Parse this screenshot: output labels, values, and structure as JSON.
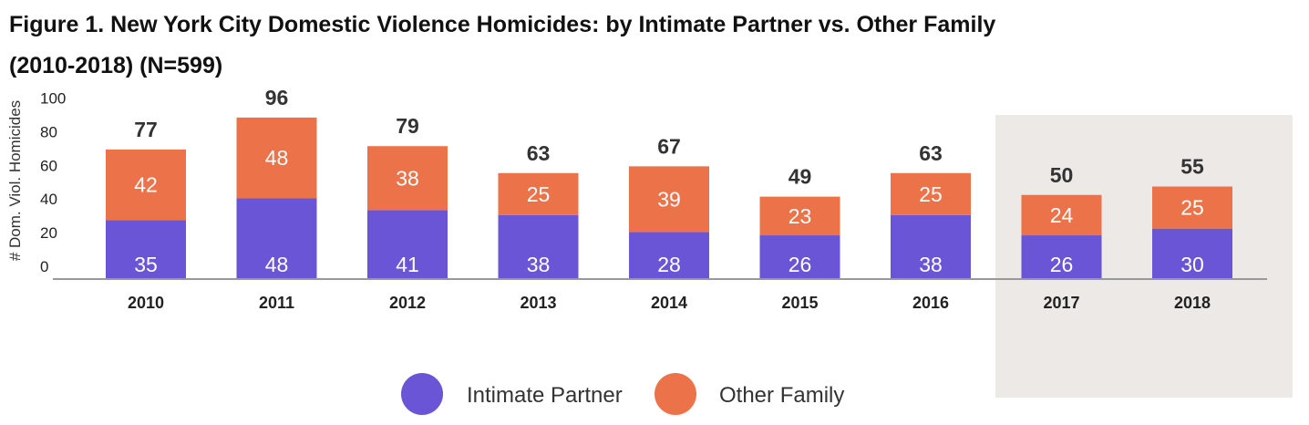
{
  "chart_data": {
    "type": "bar",
    "stacked": true,
    "title_line1": "Figure 1. New York City Domestic Violence Homicides: by Intimate Partner vs. Other Family",
    "title_line2": "(2010-2018) (N=599)",
    "ylabel": "# Dom. Viol. Homicides",
    "xlabel": "",
    "ylim": [
      0,
      100
    ],
    "yticks": [
      "0",
      "20",
      "40",
      "60",
      "80",
      "100"
    ],
    "categories": [
      "2010",
      "2011",
      "2012",
      "2013",
      "2014",
      "2015",
      "2016",
      "2017",
      "2018"
    ],
    "series": [
      {
        "name": "Intimate Partner",
        "color": "#6a55d6",
        "values": [
          35,
          48,
          41,
          38,
          28,
          26,
          38,
          26,
          30
        ]
      },
      {
        "name": "Other Family",
        "color": "#ec7349",
        "values": [
          42,
          48,
          38,
          25,
          39,
          23,
          25,
          24,
          25
        ]
      }
    ],
    "totals": [
      77,
      96,
      79,
      63,
      67,
      49,
      63,
      50,
      55
    ],
    "highlighted_categories": [
      "2017",
      "2018"
    ],
    "highlight_color": "#ece9e7",
    "grid": false,
    "legend_position": "bottom"
  }
}
